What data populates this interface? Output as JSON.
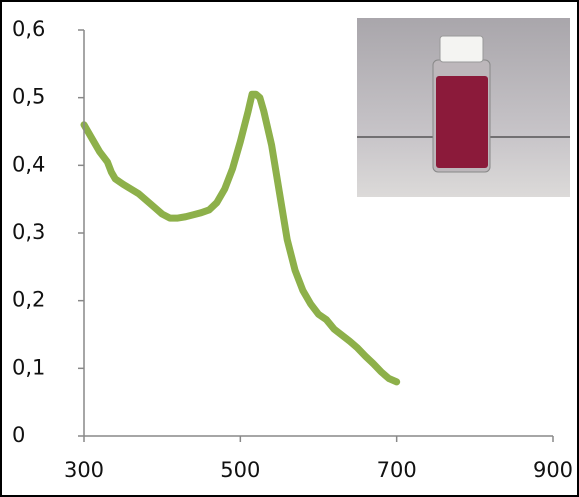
{
  "chart_data": {
    "type": "line",
    "x": [
      300,
      310,
      320,
      330,
      335,
      340,
      350,
      360,
      370,
      380,
      390,
      400,
      410,
      420,
      430,
      440,
      450,
      460,
      470,
      480,
      490,
      500,
      510,
      515,
      520,
      525,
      530,
      540,
      550,
      560,
      570,
      580,
      590,
      600,
      610,
      620,
      640,
      650,
      660,
      670,
      680,
      690,
      700
    ],
    "series": [
      {
        "color": "#8db04a",
        "values": [
          0.46,
          0.44,
          0.42,
          0.405,
          0.39,
          0.38,
          0.372,
          0.365,
          0.358,
          0.348,
          0.338,
          0.328,
          0.322,
          0.322,
          0.324,
          0.327,
          0.33,
          0.334,
          0.345,
          0.365,
          0.395,
          0.435,
          0.48,
          0.505,
          0.505,
          0.5,
          0.48,
          0.43,
          0.36,
          0.29,
          0.245,
          0.215,
          0.195,
          0.18,
          0.172,
          0.158,
          0.14,
          0.13,
          0.118,
          0.107,
          0.095,
          0.085,
          0.08
        ]
      }
    ],
    "xlim": [
      300,
      900
    ],
    "xticks": [
      300,
      500,
      700,
      900
    ],
    "ylim": [
      0,
      0.6
    ],
    "yticks": [
      0,
      {
        "value": 0.1,
        "label": "0,1"
      },
      {
        "value": 0.2,
        "label": "0,2"
      },
      {
        "value": 0.3,
        "label": "0,3"
      },
      {
        "value": 0.4,
        "label": "0,4"
      },
      {
        "value": 0.5,
        "label": "0,5"
      },
      {
        "value": 0.6,
        "label": "0,6"
      }
    ]
  }
}
